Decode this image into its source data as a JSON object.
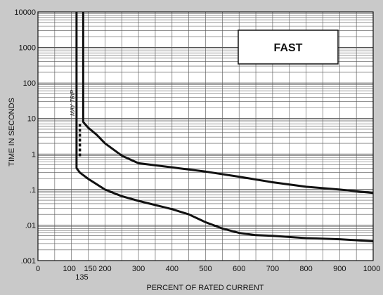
{
  "chart_data": {
    "type": "line",
    "title": "",
    "xlabel": "PERCENT OF RATED CURRENT",
    "ylabel": "TIME IN SECONDS",
    "xlim": [
      0,
      1000
    ],
    "ylim": [
      0.001,
      10000
    ],
    "yscale": "log",
    "grid": true,
    "legend_box": "FAST",
    "annotation": "MAY TRIP",
    "x_ticks": [
      0,
      100,
      150,
      200,
      300,
      400,
      500,
      600,
      700,
      800,
      900,
      1000
    ],
    "x_tick_labels": [
      "0",
      "100",
      "150",
      "200",
      "300",
      "400",
      "500",
      "600",
      "700",
      "800",
      "900",
      "1000"
    ],
    "x_extra_tick": {
      "value": 135,
      "label": "135"
    },
    "y_ticks": [
      0.001,
      0.01,
      0.1,
      1,
      10,
      100,
      1000,
      10000
    ],
    "y_tick_labels": [
      ".001",
      ".01",
      ".1",
      "1",
      "10",
      "100",
      "1000",
      "10000"
    ],
    "series": [
      {
        "x": [
          135,
          135,
          140,
          150,
          175,
          200,
          250,
          300,
          400,
          500,
          600,
          700,
          800,
          900,
          1000
        ],
        "y": [
          10000,
          8,
          7,
          5.5,
          3.5,
          2,
          0.9,
          0.55,
          0.42,
          0.32,
          0.23,
          0.16,
          0.12,
          0.1,
          0.08
        ]
      },
      {
        "x": [
          115,
          115,
          125,
          150,
          200,
          250,
          300,
          400,
          450,
          500,
          550,
          600,
          650,
          700,
          800,
          900,
          1000
        ],
        "y": [
          10000,
          0.4,
          0.3,
          0.2,
          0.1,
          0.065,
          0.048,
          0.028,
          0.02,
          0.012,
          0.008,
          0.006,
          0.0052,
          0.005,
          0.0043,
          0.004,
          0.0035
        ]
      }
    ],
    "may_trip_segment": {
      "x": 125,
      "y": [
        7,
        0.8
      ]
    }
  }
}
